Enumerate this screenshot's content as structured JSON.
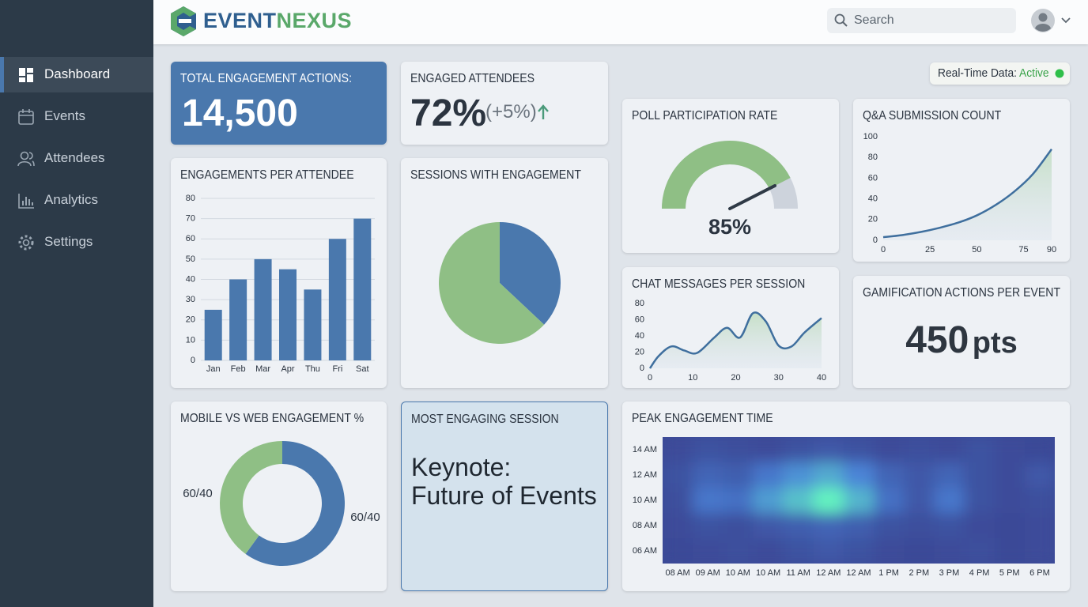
{
  "brand": [
    "EVENT",
    "NEXUS"
  ],
  "search_placeholder": "Search",
  "nav": [
    "Dashboard",
    "Events",
    "Attendees",
    "Analytics",
    "Settings"
  ],
  "realtime": {
    "label": "Real-Time Data:",
    "status": "Active"
  },
  "total_engagement": {
    "title": "TOTAL ENGAGEMENT ACTIONS:",
    "value": "14,500"
  },
  "engaged_attendees": {
    "title": "ENGAGED ATTENDEES",
    "value": "72%",
    "change": "(+5%)"
  },
  "gamification": {
    "title": "GAMIFICATION ACTIONS PER EVENT",
    "value": "450",
    "unit": "pts"
  },
  "most_engaging": {
    "title": "MOST ENGAGING SESSION",
    "lines": [
      "Keynote:",
      "Future of Events"
    ]
  },
  "chart_data": [
    {
      "type": "bar",
      "title": "ENGAGEMENTS PER ATTENDEE",
      "categories": [
        "Jan",
        "Feb",
        "Mar",
        "Apr",
        "Thu",
        "Fri",
        "Sat"
      ],
      "values": [
        25,
        40,
        50,
        45,
        35,
        60,
        70
      ],
      "color": "#4a78ad",
      "ylim": [
        0,
        80
      ],
      "yticks": [
        0,
        10,
        20,
        30,
        40,
        50,
        60,
        70,
        80
      ],
      "grid": true
    },
    {
      "type": "pie",
      "title": "SESSIONS WITH ENGAGEMENT",
      "values": [
        37,
        63
      ],
      "colors": [
        "#4a78ad",
        "#8fbf85"
      ]
    },
    {
      "type": "gauge",
      "title": "POLL PARTICIPATION RATE",
      "value": 85,
      "value_label": "85%",
      "ylim": [
        0,
        100
      ],
      "color": "#8fbf85"
    },
    {
      "type": "line",
      "title": "Q&A SUBMISSION COUNT",
      "x": [
        0,
        10,
        20,
        30,
        40,
        50,
        60,
        70,
        80,
        90
      ],
      "values": [
        3,
        5,
        8,
        12,
        17,
        24,
        34,
        47,
        64,
        88
      ],
      "color": "#3f6f9e",
      "xlim": [
        0,
        90
      ],
      "xticks": [
        0,
        25,
        50,
        75,
        90
      ],
      "ylim": [
        0,
        100
      ],
      "yticks": [
        0,
        20,
        40,
        60,
        80,
        100
      ],
      "grid": false
    },
    {
      "type": "line",
      "title": "CHAT MESSAGES PER SESSION",
      "x": [
        0,
        2,
        5,
        8,
        11,
        15,
        18,
        21,
        24,
        27,
        30,
        33,
        36,
        40
      ],
      "values": [
        0,
        15,
        27,
        22,
        19,
        38,
        50,
        38,
        68,
        58,
        28,
        27,
        44,
        62
      ],
      "color": "#3f6f9e",
      "xlim": [
        0,
        40
      ],
      "xticks": [
        0,
        10,
        20,
        30,
        40
      ],
      "ylim": [
        0,
        80
      ],
      "yticks": [
        0,
        20,
        40,
        60,
        80
      ],
      "grid": false
    },
    {
      "type": "donut",
      "title": "MOBILE VS WEB ENGAGEMENT %",
      "values": [
        60,
        40
      ],
      "colors": [
        "#4a78ad",
        "#8fbf85"
      ],
      "annotations": [
        "60/40",
        "60/40"
      ]
    },
    {
      "type": "heatmap",
      "title": "PEAK ENGAGEMENT TIME",
      "x": [
        "08 AM",
        "09 AM",
        "10 AM",
        "10 AM",
        "11 AM",
        "12 AM",
        "12 AM",
        "1 PM",
        "2 PM",
        "3 PM",
        "4 PM",
        "5 PM",
        "6 PM"
      ],
      "y": [
        "14 AM",
        "12 AM",
        "10 AM",
        "08 AM",
        "06 AM"
      ],
      "values": [
        [
          10,
          15,
          12,
          10,
          15,
          20,
          15,
          10,
          12,
          10,
          15,
          10,
          8
        ],
        [
          15,
          30,
          25,
          45,
          60,
          70,
          55,
          30,
          20,
          30,
          15,
          10,
          20
        ],
        [
          12,
          45,
          40,
          65,
          80,
          100,
          75,
          40,
          20,
          45,
          15,
          10,
          12
        ],
        [
          10,
          15,
          12,
          20,
          25,
          30,
          25,
          15,
          12,
          15,
          10,
          8,
          10
        ],
        [
          8,
          10,
          12,
          10,
          15,
          20,
          15,
          10,
          8,
          10,
          12,
          8,
          10
        ]
      ],
      "colors": [
        "#3b4a97",
        "#4a82d8",
        "#63f2c0"
      ]
    }
  ]
}
